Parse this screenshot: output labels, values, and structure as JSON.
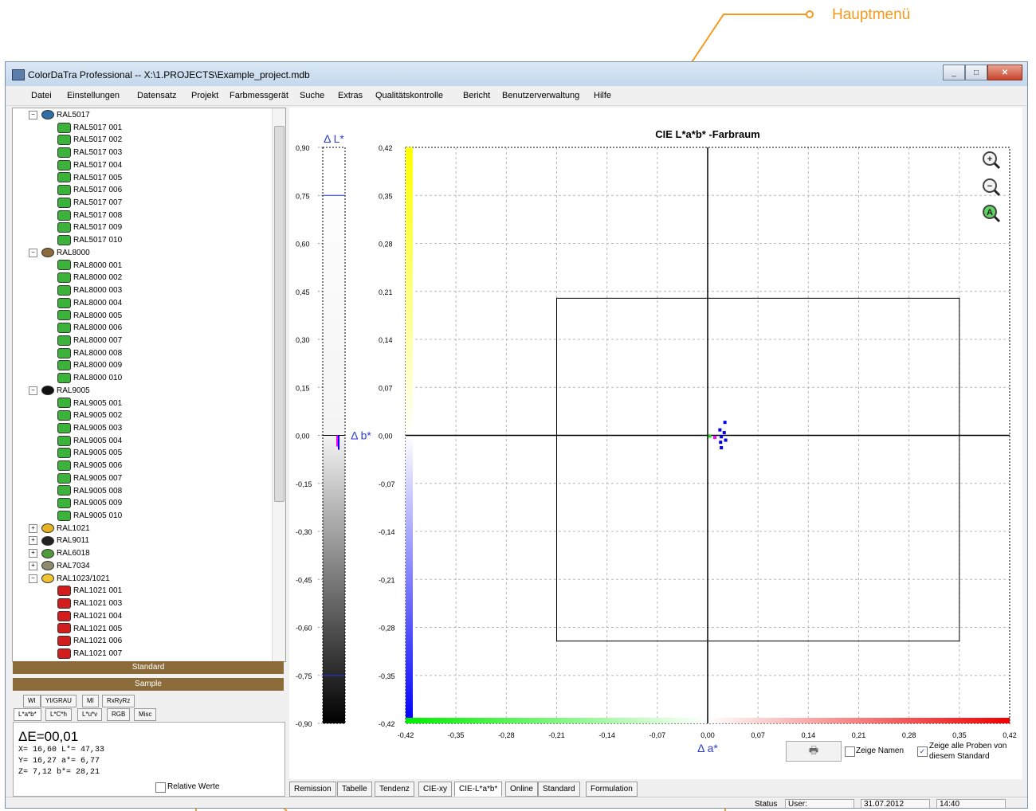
{
  "callout": {
    "label": "Hauptmenü"
  },
  "window": {
    "title": "ColorDaTra Professional --  X:\\1.PROJECTS\\Example_project.mdb"
  },
  "menu": [
    "Datei",
    "Einstellungen",
    "Datensatz",
    "Projekt",
    "Farbmessgerät",
    "Suche",
    "Extras",
    "Qualitätskontrolle",
    "Bericht",
    "Benutzerverwaltung",
    "Hilfe"
  ],
  "tree": {
    "groups": [
      {
        "name": "RAL5017",
        "color": "#2f6fa8",
        "expanded": true,
        "leaf_color": "#3bb33b",
        "items": [
          "RAL5017 001",
          "RAL5017 002",
          "RAL5017 003",
          "RAL5017 004",
          "RAL5017 005",
          "RAL5017 006",
          "RAL5017 007",
          "RAL5017 008",
          "RAL5017 009",
          "RAL5017 010"
        ]
      },
      {
        "name": "RAL8000",
        "color": "#8b6b3a",
        "expanded": true,
        "leaf_color": "#3bb33b",
        "items": [
          "RAL8000 001",
          "RAL8000 002",
          "RAL8000 003",
          "RAL8000 004",
          "RAL8000 005",
          "RAL8000 006",
          "RAL8000 007",
          "RAL8000 008",
          "RAL8000 009",
          "RAL8000 010"
        ]
      },
      {
        "name": "RAL9005",
        "color": "#111111",
        "expanded": true,
        "leaf_color": "#3bb33b",
        "items": [
          "RAL9005 001",
          "RAL9005 002",
          "RAL9005 003",
          "RAL9005 004",
          "RAL9005 005",
          "RAL9005 006",
          "RAL9005 007",
          "RAL9005 008",
          "RAL9005 009",
          "RAL9005 010"
        ]
      },
      {
        "name": "RAL1021",
        "color": "#e5b322",
        "expanded": false,
        "items": []
      },
      {
        "name": "RAL9011",
        "color": "#222222",
        "expanded": false,
        "items": []
      },
      {
        "name": "RAL6018",
        "color": "#4f9a3a",
        "expanded": false,
        "items": []
      },
      {
        "name": "RAL7034",
        "color": "#8f8a6d",
        "expanded": false,
        "items": []
      },
      {
        "name": "RAL1023/1021",
        "color": "#f0c230",
        "expanded": true,
        "leaf_color": "#d31d1d",
        "items": [
          "RAL1021 001",
          "RAL1021 003",
          "RAL1021 004",
          "RAL1021 005",
          "RAL1021 006",
          "RAL1021 007"
        ]
      }
    ]
  },
  "bars": {
    "standard": "Standard",
    "sample": "Sample"
  },
  "tabs_row1": [
    "WI",
    "YI/GRAU",
    "MI",
    "RxRyRz"
  ],
  "tabs_row2": [
    "L*a*b*",
    "L*C*h",
    "L*u*v",
    "RGB",
    "Misc"
  ],
  "info": {
    "delta_e": "ΔE=00,01",
    "line1": "X= 16,60   L*= 47,33",
    "line2": "Y= 16,27   a*=  6,77",
    "line3": "Z=  7,12   b*= 28,21",
    "relative_label": "Relative Werte"
  },
  "chart_data": [
    {
      "type": "bar",
      "title": "",
      "ylabel": "Δ L*",
      "ylim": [
        -0.9,
        0.9
      ],
      "y_ticks": [
        "0,90",
        "0,75",
        "0,60",
        "0,45",
        "0,30",
        "0,15",
        "0,00",
        "-0,15",
        "-0,30",
        "-0,45",
        "-0,60",
        "-0,75",
        "-0,90"
      ],
      "tolerance_lines": [
        0.75,
        -0.75
      ],
      "values": [
        -0.02,
        -0.03
      ]
    },
    {
      "type": "scatter",
      "title": "CIE L*a*b* -Farbraum",
      "xlabel": "Δ a*",
      "ylabel": "Δ b*",
      "xlim": [
        -0.42,
        0.42
      ],
      "ylim": [
        -0.42,
        0.42
      ],
      "x_ticks": [
        "-0,42",
        "-0,35",
        "-0,28",
        "-0,21",
        "-0,14",
        "-0,07",
        "0,00",
        "0,07",
        "0,14",
        "0,21",
        "0,28",
        "0,35",
        "0,42"
      ],
      "y_ticks": [
        "0,42",
        "0,35",
        "0,28",
        "0,21",
        "0,14",
        "0,07",
        "0,00",
        "-0,07",
        "-0,14",
        "-0,21",
        "-0,28",
        "-0,35",
        "-0,42"
      ],
      "tolerance_box": {
        "a_min": -0.21,
        "a_max": 0.35,
        "b_min": -0.3,
        "b_max": 0.2
      },
      "grid": true,
      "points": [
        {
          "a": 0.024,
          "b": 0.019,
          "color": "#0000ee"
        },
        {
          "a": 0.017,
          "b": 0.008,
          "color": "#0000ee"
        },
        {
          "a": 0.023,
          "b": 0.004,
          "color": "#0000ee"
        },
        {
          "a": 0.019,
          "b": -0.002,
          "color": "#0000ee"
        },
        {
          "a": 0.025,
          "b": -0.007,
          "color": "#0000ee"
        },
        {
          "a": 0.018,
          "b": -0.01,
          "color": "#0000ee"
        },
        {
          "a": 0.019,
          "b": -0.018,
          "color": "#0000ee"
        },
        {
          "a": 0.01,
          "b": -0.003,
          "color": "#ff00ff"
        },
        {
          "a": 0.003,
          "b": -0.001,
          "color": "#22cc22"
        }
      ]
    }
  ],
  "controls": {
    "zeige_namen": "Zeige Namen",
    "zeige_alle_line1": "Zeige alle Proben von",
    "zeige_alle_line2": "diesem Standard"
  },
  "bottom_tabs": [
    "Remission",
    "Tabelle",
    "Tendenz",
    "CIE-xy",
    "CIE-L*a*b*",
    "Online",
    "Standard",
    "Formulation"
  ],
  "status": {
    "label": "Status",
    "user": "User:",
    "date": "31.07.2012",
    "time": "14:40"
  }
}
